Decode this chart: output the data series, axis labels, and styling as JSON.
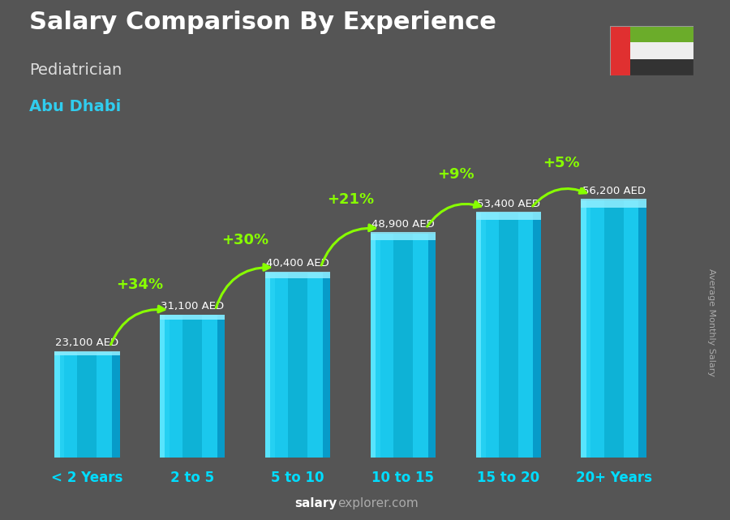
{
  "title": "Salary Comparison By Experience",
  "subtitle": "Pediatrician",
  "city": "Abu Dhabi",
  "ylabel": "Average Monthly Salary",
  "categories": [
    "< 2 Years",
    "2 to 5",
    "5 to 10",
    "10 to 15",
    "15 to 20",
    "20+ Years"
  ],
  "values": [
    23100,
    31100,
    40400,
    48900,
    53400,
    56200
  ],
  "value_labels": [
    "23,100 AED",
    "31,100 AED",
    "40,400 AED",
    "48,900 AED",
    "53,400 AED",
    "56,200 AED"
  ],
  "pct_labels": [
    "+34%",
    "+30%",
    "+21%",
    "+9%",
    "+5%"
  ],
  "bar_main_color": "#1AC8ED",
  "bar_left_highlight": "#60E8FF",
  "bar_right_shadow": "#0088BB",
  "bar_center_reflection": "#0099CC",
  "background_color": "#555555",
  "title_color": "#FFFFFF",
  "subtitle_color": "#DDDDDD",
  "city_color": "#30CCEE",
  "value_label_color": "#FFFFFF",
  "pct_color": "#88FF00",
  "arrow_color": "#88FF00",
  "xlabel_color": "#00DDFF",
  "watermark_color": "#AAAAAA",
  "watermark_bold_color": "#FFFFFF",
  "ylabel_color": "#AAAAAA",
  "flag_green": "#6BAC2A",
  "flag_white": "#EEEEEE",
  "flag_black": "#333333",
  "flag_red": "#E03030",
  "figsize": [
    9.0,
    6.41
  ],
  "dpi": 100
}
